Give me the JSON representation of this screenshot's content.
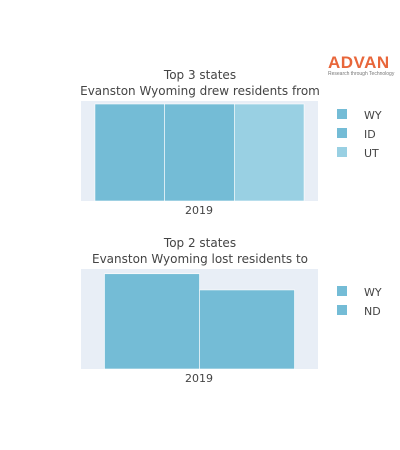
{
  "brand": {
    "name": "ADVAN",
    "tagline": "Research through Technology",
    "color": "#e8663a"
  },
  "chart_data": [
    {
      "type": "bar",
      "stacked": true,
      "orientation": "horizontal-stack",
      "title_line1": "Top 3 states",
      "title_line2": "Evanston Wyoming drew residents from",
      "categories": [
        "2019"
      ],
      "series": [
        {
          "name": "WY",
          "values": [
            1
          ],
          "color": "#74bcd6"
        },
        {
          "name": "ID",
          "values": [
            1
          ],
          "color": "#74bcd6"
        },
        {
          "name": "UT",
          "values": [
            1
          ],
          "color": "#99d0e3"
        }
      ],
      "xlim": [
        0,
        3.4
      ],
      "legend_position": "right",
      "plot_bg": "#e8eef6"
    },
    {
      "type": "bar",
      "title_line1": "Top 2 states",
      "title_line2": "Evanston Wyoming lost residents to",
      "categories": [
        "2019"
      ],
      "series": [
        {
          "name": "WY",
          "values": [
            1
          ],
          "color": "#74bcd6"
        },
        {
          "name": "ND",
          "values": [
            0.83
          ],
          "color": "#74bcd6"
        }
      ],
      "ylim": [
        0,
        1.05
      ],
      "legend_position": "right",
      "plot_bg": "#e8eef6"
    }
  ]
}
